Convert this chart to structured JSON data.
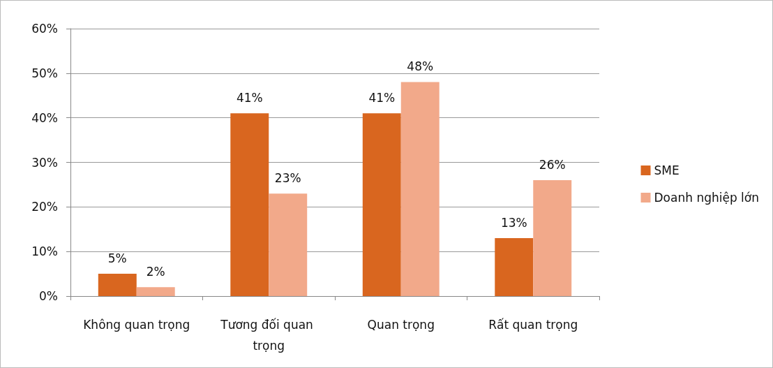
{
  "chart_data": {
    "type": "bar",
    "categories": [
      "Không quan trọng",
      "Tương đối quan trọng",
      "Quan trọng",
      "Rất quan trọng"
    ],
    "series": [
      {
        "name": "SME",
        "color": "#d9661f",
        "values": [
          5,
          41,
          41,
          13
        ],
        "value_labels": [
          "5%",
          "41%",
          "41%",
          "13%"
        ]
      },
      {
        "name": "Doanh nghiệp lớn",
        "color": "#f2a98a",
        "values": [
          2,
          23,
          48,
          26
        ],
        "value_labels": [
          "2%",
          "23%",
          "48%",
          "26%"
        ]
      }
    ],
    "ylim": [
      0,
      60
    ],
    "yticks": [
      {
        "value": 0,
        "label": "0%"
      },
      {
        "value": 10,
        "label": "10%"
      },
      {
        "value": 20,
        "label": "20%"
      },
      {
        "value": 30,
        "label": "30%"
      },
      {
        "value": 40,
        "label": "40%"
      },
      {
        "value": 50,
        "label": "50%"
      },
      {
        "value": 60,
        "label": "60%"
      }
    ],
    "grid": "y",
    "legend": "right"
  }
}
